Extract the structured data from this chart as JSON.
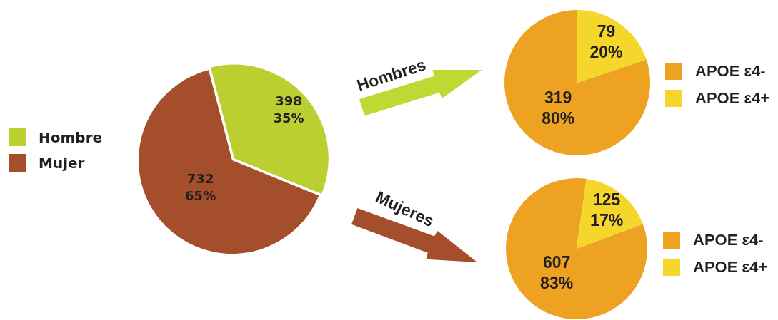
{
  "chart_data": [
    {
      "type": "pie",
      "categories": [
        "Hombre",
        "Mujer"
      ],
      "values": [
        398,
        732
      ],
      "colors": [
        "#bccf31",
        "#a54e2c"
      ],
      "value_labels": [
        "398\n35%",
        "732\n65%"
      ],
      "legend": "left"
    },
    {
      "type": "pie",
      "title": "Hombres",
      "categories": [
        "APOE ε4-",
        "APOE ε4+"
      ],
      "values": [
        319,
        79
      ],
      "colors": [
        "#eda221",
        "#f5d72c"
      ],
      "value_labels": [
        "319\n80%",
        "79\n20%"
      ],
      "legend": "right"
    },
    {
      "type": "pie",
      "title": "Mujeres",
      "categories": [
        "APOE ε4-",
        "APOE ε4+"
      ],
      "values": [
        607,
        125
      ],
      "colors": [
        "#eda221",
        "#f5d72c"
      ],
      "value_labels": [
        "607\n83%",
        "125\n17%"
      ],
      "legend": "right"
    }
  ]
}
